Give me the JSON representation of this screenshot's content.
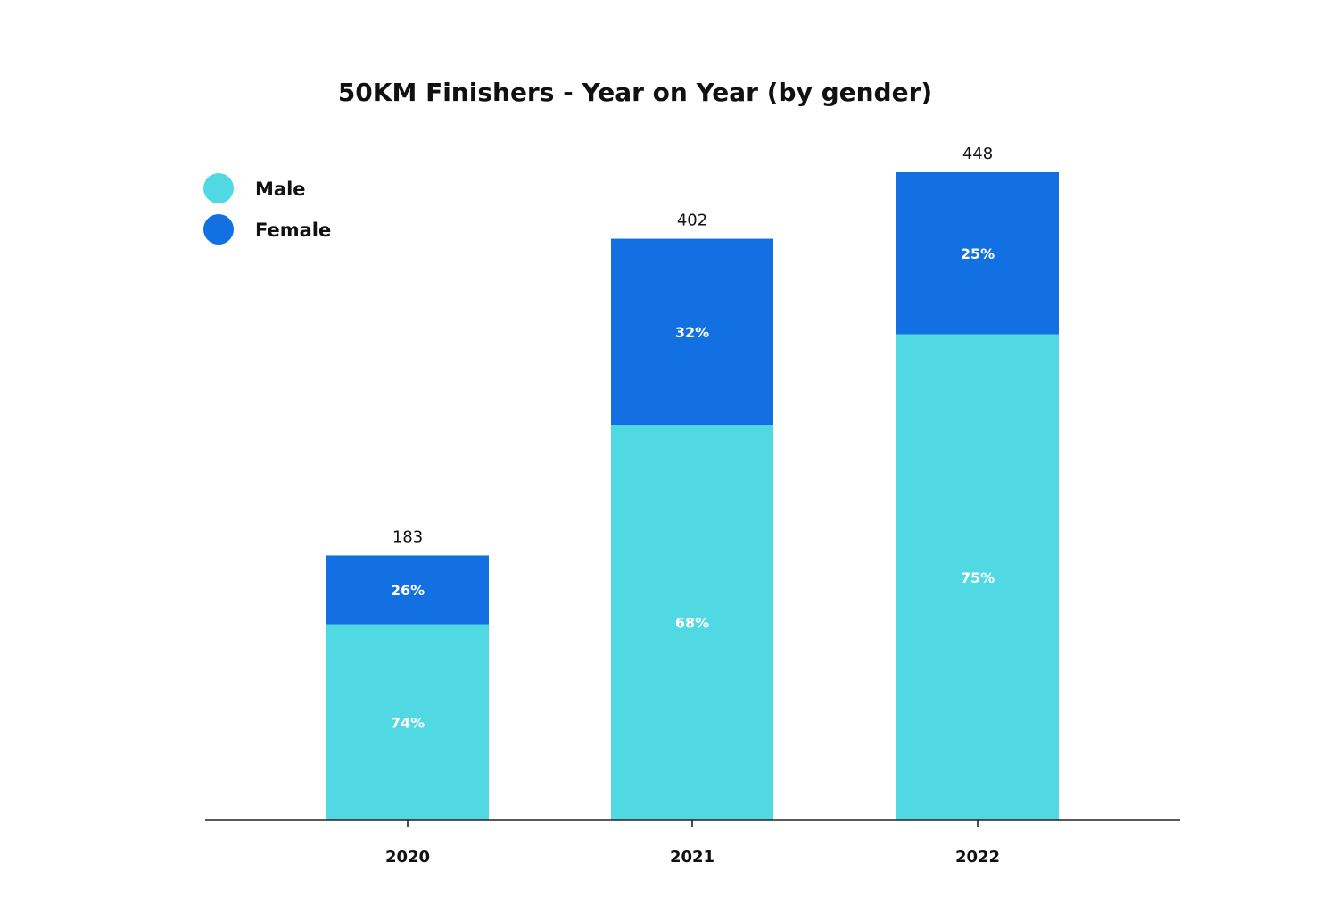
{
  "chart_data": {
    "type": "bar",
    "stacked": true,
    "title": "50KM Finishers - Year on Year (by gender)",
    "xlabel": "",
    "ylabel": "",
    "categories": [
      "2020",
      "2021",
      "2022"
    ],
    "totals": [
      183,
      402,
      448
    ],
    "total_labels": [
      "183",
      "402",
      "448"
    ],
    "ylim": [
      0,
      448
    ],
    "grid": false,
    "legend_position": "top-left",
    "series": [
      {
        "name": "Male",
        "color": "#50D8E3",
        "percentages": [
          74,
          68,
          75
        ],
        "labels": [
          "74%",
          "68%",
          "75%"
        ]
      },
      {
        "name": "Female",
        "color": "#1270E3",
        "percentages": [
          26,
          32,
          25
        ],
        "labels": [
          "26%",
          "32%",
          "25%"
        ]
      }
    ]
  },
  "colors": {
    "axis": "#222222",
    "text": "#111111",
    "segment_label": "#ffffff"
  }
}
